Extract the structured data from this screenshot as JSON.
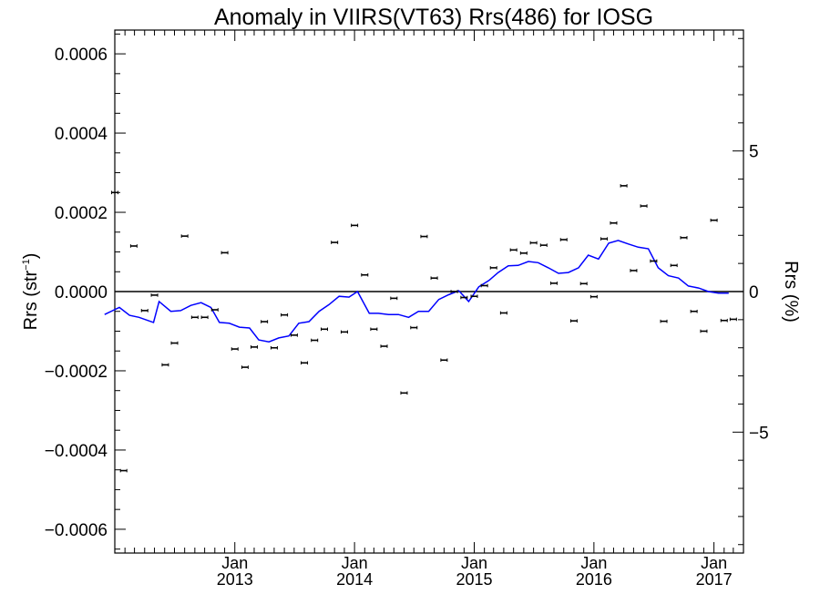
{
  "chart_data": {
    "type": "scatter",
    "title": "Anomaly in VIIRS(VT63) Rrs(486) for IOSG",
    "ylabel_left": "Rrs (str",
    "ylabel_left_sup": "−1",
    "ylabel_left_close": ")",
    "ylabel_right": "Rrs (%)",
    "x_start": "2012-01",
    "x_end": "2017-04",
    "ylim_left": [
      -0.00066,
      0.00066
    ],
    "ylim_right": [
      -9.3,
      9.3
    ],
    "yticks_left": [
      -0.0006,
      -0.0004,
      -0.0002,
      0.0,
      0.0002,
      0.0004,
      0.0006
    ],
    "ytick_labels_left": [
      "−0.0006",
      "−0.0004",
      "−0.0002",
      "0.0000",
      "0.0002",
      "0.0004",
      "0.0006"
    ],
    "yticks_right": [
      -5,
      0,
      5
    ],
    "ytick_labels_right": [
      "−5",
      "0",
      "5"
    ],
    "xticks": [
      {
        "date": "2013-01",
        "month": "Jan",
        "year": "2013"
      },
      {
        "date": "2014-01",
        "month": "Jan",
        "year": "2014"
      },
      {
        "date": "2015-01",
        "month": "Jan",
        "year": "2015"
      },
      {
        "date": "2016-01",
        "month": "Jan",
        "year": "2016"
      },
      {
        "date": "2017-01",
        "month": "Jan",
        "year": "2017"
      }
    ],
    "grid": false,
    "zero_line": true,
    "colors": {
      "points": "#000000",
      "line": "#0000ff",
      "axes": "#000000"
    },
    "series": [
      {
        "kind": "points_with_error_bars",
        "points": [
          {
            "date": "2012-01-01",
            "y": 0.00025
          },
          {
            "date": "2012-01-28",
            "y": -0.000452
          },
          {
            "date": "2012-02-28",
            "y": 0.000115
          },
          {
            "date": "2012-04-01",
            "y": -4.8e-05
          },
          {
            "date": "2012-05-01",
            "y": -9e-06
          },
          {
            "date": "2012-06-03",
            "y": -0.000185
          },
          {
            "date": "2012-07-01",
            "y": -0.00013
          },
          {
            "date": "2012-08-01",
            "y": 0.00014
          },
          {
            "date": "2012-09-01",
            "y": -6.5e-05
          },
          {
            "date": "2012-10-01",
            "y": -6.5e-05
          },
          {
            "date": "2012-11-01",
            "y": -4.6e-05
          },
          {
            "date": "2012-12-01",
            "y": 9.8e-05
          },
          {
            "date": "2013-01-01",
            "y": -0.000145
          },
          {
            "date": "2013-02-01",
            "y": -0.000191
          },
          {
            "date": "2013-03-01",
            "y": -0.00014
          },
          {
            "date": "2013-04-01",
            "y": -7.6e-05
          },
          {
            "date": "2013-05-01",
            "y": -0.000142
          },
          {
            "date": "2013-06-01",
            "y": -5.9e-05
          },
          {
            "date": "2013-07-01",
            "y": -0.00011
          },
          {
            "date": "2013-08-01",
            "y": -0.00018
          },
          {
            "date": "2013-09-01",
            "y": -0.000123
          },
          {
            "date": "2013-10-01",
            "y": -9.5e-05
          },
          {
            "date": "2013-11-01",
            "y": 0.000124
          },
          {
            "date": "2013-12-01",
            "y": -0.000102
          },
          {
            "date": "2014-01-01",
            "y": 0.000167
          },
          {
            "date": "2014-02-01",
            "y": 4.2e-05
          },
          {
            "date": "2014-03-01",
            "y": -9.5e-05
          },
          {
            "date": "2014-04-01",
            "y": -0.000138
          },
          {
            "date": "2014-05-01",
            "y": -1.7e-05
          },
          {
            "date": "2014-06-01",
            "y": -0.000256
          },
          {
            "date": "2014-07-01",
            "y": -9.1e-05
          },
          {
            "date": "2014-08-01",
            "y": 0.000139
          },
          {
            "date": "2014-09-01",
            "y": 3.4e-05
          },
          {
            "date": "2014-10-01",
            "y": -0.000173
          },
          {
            "date": "2014-11-01",
            "y": 0.0
          },
          {
            "date": "2014-12-01",
            "y": -1.5e-05
          },
          {
            "date": "2015-01-01",
            "y": -1.2e-05
          },
          {
            "date": "2015-02-01",
            "y": 1.5e-05
          },
          {
            "date": "2015-03-01",
            "y": 6e-05
          },
          {
            "date": "2015-04-01",
            "y": -5.4e-05
          },
          {
            "date": "2015-05-01",
            "y": 0.000105
          },
          {
            "date": "2015-06-01",
            "y": 9.7e-05
          },
          {
            "date": "2015-07-01",
            "y": 0.000123
          },
          {
            "date": "2015-08-01",
            "y": 0.000117
          },
          {
            "date": "2015-09-01",
            "y": 2.1e-05
          },
          {
            "date": "2015-10-01",
            "y": 0.000131
          },
          {
            "date": "2015-11-01",
            "y": -7.4e-05
          },
          {
            "date": "2015-12-01",
            "y": 2e-05
          },
          {
            "date": "2016-01-01",
            "y": -1.3e-05
          },
          {
            "date": "2016-02-01",
            "y": 0.000133
          },
          {
            "date": "2016-03-01",
            "y": 0.000173
          },
          {
            "date": "2016-04-01",
            "y": 0.000267
          },
          {
            "date": "2016-05-01",
            "y": 5.3e-05
          },
          {
            "date": "2016-06-01",
            "y": 0.000216
          },
          {
            "date": "2016-07-01",
            "y": 7.7e-05
          },
          {
            "date": "2016-08-01",
            "y": -7.5e-05
          },
          {
            "date": "2016-09-01",
            "y": 6.6e-05
          },
          {
            "date": "2016-10-01",
            "y": 0.000136
          },
          {
            "date": "2016-11-01",
            "y": -5e-05
          },
          {
            "date": "2016-12-01",
            "y": -0.0001
          },
          {
            "date": "2017-01-01",
            "y": 0.00018
          },
          {
            "date": "2017-02-01",
            "y": -7.3e-05
          },
          {
            "date": "2017-03-01",
            "y": -7e-05
          }
        ]
      },
      {
        "kind": "line",
        "points": [
          {
            "date": "2011-12-01",
            "y": -5.8e-05
          },
          {
            "date": "2012-01-15",
            "y": -4e-05
          },
          {
            "date": "2012-02-15",
            "y": -6e-05
          },
          {
            "date": "2012-03-15",
            "y": -6.5e-05
          },
          {
            "date": "2012-04-28",
            "y": -7.8e-05
          },
          {
            "date": "2012-05-15",
            "y": -2.5e-05
          },
          {
            "date": "2012-06-20",
            "y": -5e-05
          },
          {
            "date": "2012-07-20",
            "y": -4.8e-05
          },
          {
            "date": "2012-08-20",
            "y": -3.5e-05
          },
          {
            "date": "2012-09-20",
            "y": -2.8e-05
          },
          {
            "date": "2012-10-20",
            "y": -4e-05
          },
          {
            "date": "2012-11-15",
            "y": -7.8e-05
          },
          {
            "date": "2012-12-15",
            "y": -8e-05
          },
          {
            "date": "2013-01-15",
            "y": -9e-05
          },
          {
            "date": "2013-02-15",
            "y": -9.2e-05
          },
          {
            "date": "2013-03-15",
            "y": -0.000122
          },
          {
            "date": "2013-04-15",
            "y": -0.000127
          },
          {
            "date": "2013-05-15",
            "y": -0.000117
          },
          {
            "date": "2013-06-15",
            "y": -0.000112
          },
          {
            "date": "2013-07-15",
            "y": -8e-05
          },
          {
            "date": "2013-08-15",
            "y": -7.6e-05
          },
          {
            "date": "2013-09-15",
            "y": -5e-05
          },
          {
            "date": "2013-10-15",
            "y": -3.3e-05
          },
          {
            "date": "2013-11-15",
            "y": -1.2e-05
          },
          {
            "date": "2013-12-15",
            "y": -1.4e-05
          },
          {
            "date": "2014-01-10",
            "y": 0.0
          },
          {
            "date": "2014-02-15",
            "y": -5.5e-05
          },
          {
            "date": "2014-03-15",
            "y": -5.5e-05
          },
          {
            "date": "2014-04-15",
            "y": -5.8e-05
          },
          {
            "date": "2014-05-15",
            "y": -5.8e-05
          },
          {
            "date": "2014-06-15",
            "y": -6.5e-05
          },
          {
            "date": "2014-07-15",
            "y": -5e-05
          },
          {
            "date": "2014-08-15",
            "y": -5e-05
          },
          {
            "date": "2014-09-15",
            "y": -2e-05
          },
          {
            "date": "2014-10-15",
            "y": -8e-06
          },
          {
            "date": "2014-11-15",
            "y": 2e-06
          },
          {
            "date": "2014-12-15",
            "y": -2.5e-05
          },
          {
            "date": "2015-01-15",
            "y": 1.2e-05
          },
          {
            "date": "2015-02-15",
            "y": 2.8e-05
          },
          {
            "date": "2015-03-15",
            "y": 4.8e-05
          },
          {
            "date": "2015-04-15",
            "y": 6.5e-05
          },
          {
            "date": "2015-05-15",
            "y": 6.6e-05
          },
          {
            "date": "2015-06-15",
            "y": 7.6e-05
          },
          {
            "date": "2015-07-15",
            "y": 7.3e-05
          },
          {
            "date": "2015-08-15",
            "y": 6e-05
          },
          {
            "date": "2015-09-15",
            "y": 4.6e-05
          },
          {
            "date": "2015-10-15",
            "y": 4.8e-05
          },
          {
            "date": "2015-11-15",
            "y": 6e-05
          },
          {
            "date": "2015-12-15",
            "y": 9.2e-05
          },
          {
            "date": "2016-01-15",
            "y": 8.2e-05
          },
          {
            "date": "2016-02-15",
            "y": 0.000122
          },
          {
            "date": "2016-03-15",
            "y": 0.000129
          },
          {
            "date": "2016-04-15",
            "y": 0.00012
          },
          {
            "date": "2016-05-15",
            "y": 0.000112
          },
          {
            "date": "2016-06-15",
            "y": 0.000108
          },
          {
            "date": "2016-07-15",
            "y": 6e-05
          },
          {
            "date": "2016-08-15",
            "y": 4e-05
          },
          {
            "date": "2016-09-15",
            "y": 3.4e-05
          },
          {
            "date": "2016-10-15",
            "y": 1.4e-05
          },
          {
            "date": "2016-11-15",
            "y": 9e-06
          },
          {
            "date": "2016-12-15",
            "y": 0.0
          },
          {
            "date": "2017-01-15",
            "y": -4e-06
          },
          {
            "date": "2017-02-15",
            "y": -4e-06
          }
        ]
      }
    ]
  }
}
